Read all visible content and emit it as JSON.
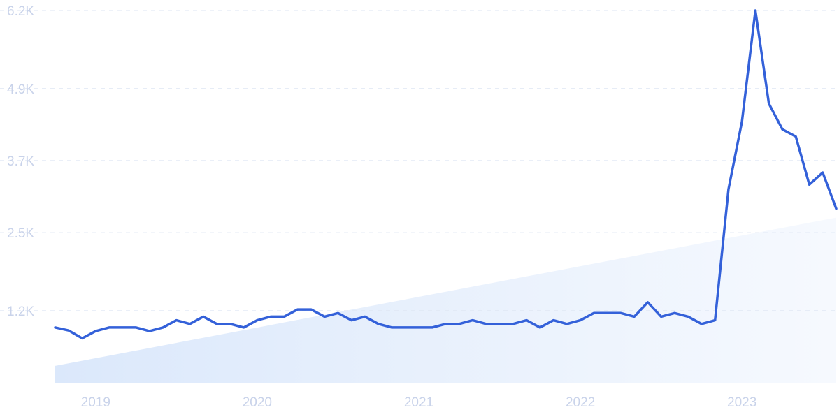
{
  "chart_data": {
    "type": "line",
    "title": "",
    "xlabel": "",
    "ylabel": "",
    "y_ticks": [
      "1.2K",
      "2.5K",
      "3.7K",
      "4.9K",
      "6.2K"
    ],
    "y_tick_values": [
      1200,
      2500,
      3700,
      4900,
      6200
    ],
    "ylim": [
      0,
      6200
    ],
    "x_ticks": [
      "2019",
      "2020",
      "2021",
      "2022",
      "2023"
    ],
    "xlim": [
      "2018-10",
      "2023-08"
    ],
    "grid": true,
    "line_color": "#3461d9",
    "trend_color": "#dbe8fb",
    "series": [
      {
        "dates": [
          "2018-10",
          "2018-11",
          "2018-12",
          "2019-01",
          "2019-02",
          "2019-03",
          "2019-04",
          "2019-05",
          "2019-06",
          "2019-07",
          "2019-08",
          "2019-09",
          "2019-10",
          "2019-11",
          "2019-12",
          "2020-01",
          "2020-02",
          "2020-03",
          "2020-04",
          "2020-05",
          "2020-06",
          "2020-07",
          "2020-08",
          "2020-09",
          "2020-10",
          "2020-11",
          "2020-12",
          "2021-01",
          "2021-02",
          "2021-03",
          "2021-04",
          "2021-05",
          "2021-06",
          "2021-07",
          "2021-08",
          "2021-09",
          "2021-10",
          "2021-11",
          "2021-12",
          "2022-01",
          "2022-02",
          "2022-03",
          "2022-04",
          "2022-05",
          "2022-06",
          "2022-07",
          "2022-08",
          "2022-09",
          "2022-10",
          "2022-11",
          "2022-12",
          "2023-01",
          "2023-02",
          "2023-03",
          "2023-04",
          "2023-05",
          "2023-06",
          "2023-07",
          "2023-08"
        ],
        "values": [
          920,
          870,
          740,
          860,
          920,
          920,
          920,
          860,
          920,
          1040,
          980,
          1100,
          980,
          980,
          920,
          1040,
          1100,
          1100,
          1220,
          1220,
          1100,
          1160,
          1040,
          1100,
          980,
          920,
          920,
          920,
          920,
          980,
          980,
          1040,
          980,
          980,
          980,
          1040,
          920,
          1040,
          980,
          1040,
          1160,
          1160,
          1160,
          1100,
          1340,
          1100,
          1160,
          1100,
          980,
          1040,
          3220,
          4350,
          6200,
          4650,
          4220,
          4100,
          3300,
          3500,
          2900
        ]
      }
    ],
    "trend": {
      "start": 280,
      "end": 2750
    }
  }
}
